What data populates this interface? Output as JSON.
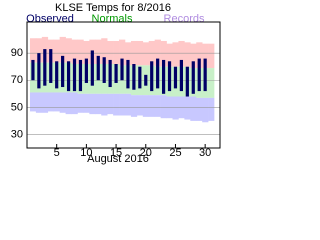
{
  "chart_data": {
    "type": "range-bar",
    "title": "KLSE Temps for 8/2016",
    "x_label": "August 2016",
    "x": [
      1,
      2,
      3,
      4,
      5,
      6,
      7,
      8,
      9,
      10,
      11,
      12,
      13,
      14,
      15,
      16,
      17,
      18,
      19,
      20,
      21,
      22,
      23,
      24,
      25,
      26,
      27,
      28,
      29,
      30,
      31
    ],
    "xlim": [
      0,
      32.5
    ],
    "xticks": [
      5,
      10,
      15,
      20,
      25,
      30
    ],
    "ylim": [
      20,
      113
    ],
    "yticks": [
      30,
      50,
      70,
      90
    ],
    "grid": true,
    "series": [
      {
        "name": "Observed",
        "color": "#000066",
        "high": [
          85,
          90,
          93,
          93,
          84,
          88,
          84,
          86,
          85,
          86,
          92,
          88,
          87,
          85,
          82,
          86,
          85,
          82,
          80,
          74,
          84,
          86,
          85,
          84,
          80,
          85,
          80,
          84,
          86,
          86,
          null
        ],
        "low": [
          70,
          64,
          66,
          68,
          64,
          65,
          62,
          62,
          62,
          68,
          66,
          70,
          68,
          65,
          68,
          70,
          64,
          63,
          64,
          66,
          62,
          64,
          60,
          62,
          64,
          62,
          58,
          60,
          62,
          62,
          null
        ]
      },
      {
        "name": "Normals",
        "color": "#009900",
        "band_color": "#c8f0c8",
        "high": [
          83,
          83,
          83,
          83,
          83,
          83,
          83,
          82,
          82,
          82,
          82,
          82,
          82,
          82,
          82,
          81,
          81,
          81,
          81,
          81,
          81,
          80,
          80,
          80,
          80,
          80,
          80,
          79,
          79,
          79,
          79
        ],
        "low": [
          61,
          61,
          61,
          61,
          61,
          61,
          61,
          61,
          60,
          60,
          60,
          60,
          60,
          60,
          60,
          60,
          60,
          59,
          59,
          59,
          59,
          59,
          59,
          58,
          58,
          58,
          58,
          58,
          57,
          57,
          57
        ]
      },
      {
        "name": "Records",
        "color": "#b08ce0",
        "high_color": "#ffc8c8",
        "low_color": "#c8c8ff",
        "high": [
          101,
          101,
          102,
          100,
          100,
          102,
          101,
          100,
          100,
          99,
          100,
          100,
          101,
          99,
          99,
          100,
          98,
          99,
          99,
          98,
          99,
          100,
          99,
          97,
          98,
          99,
          98,
          97,
          98,
          97,
          97
        ],
        "low": [
          47,
          46,
          46,
          47,
          47,
          46,
          45,
          45,
          46,
          46,
          45,
          45,
          44,
          45,
          44,
          44,
          44,
          43,
          44,
          43,
          43,
          43,
          42,
          42,
          41,
          42,
          41,
          40,
          40,
          39,
          40
        ]
      }
    ]
  }
}
